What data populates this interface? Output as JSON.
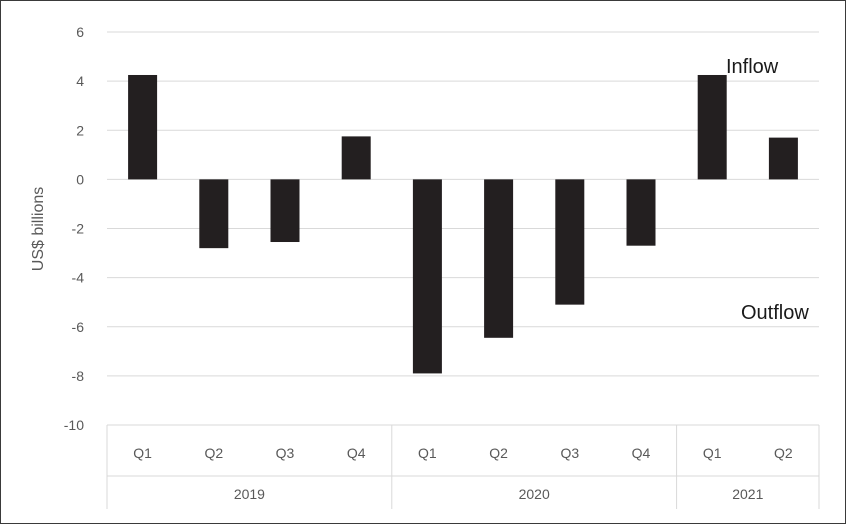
{
  "chart_data": {
    "type": "bar",
    "ylabel": "US$ billions",
    "ylim": [
      -10,
      6
    ],
    "yticks": [
      6,
      4,
      2,
      0,
      -2,
      -4,
      -6,
      -8,
      -10
    ],
    "categories": [
      "Q1",
      "Q2",
      "Q3",
      "Q4",
      "Q1",
      "Q2",
      "Q3",
      "Q4",
      "Q1",
      "Q2"
    ],
    "groups": [
      {
        "label": "2019",
        "count": 4
      },
      {
        "label": "2020",
        "count": 4
      },
      {
        "label": "2021",
        "count": 2
      }
    ],
    "values": [
      4.25,
      -2.8,
      -2.55,
      1.75,
      -7.9,
      -6.45,
      -5.1,
      -2.7,
      4.25,
      1.7
    ],
    "annotations": [
      "Inflow",
      "Outflow"
    ],
    "bar_color": "#231f20",
    "grid": true,
    "legend": "none"
  }
}
